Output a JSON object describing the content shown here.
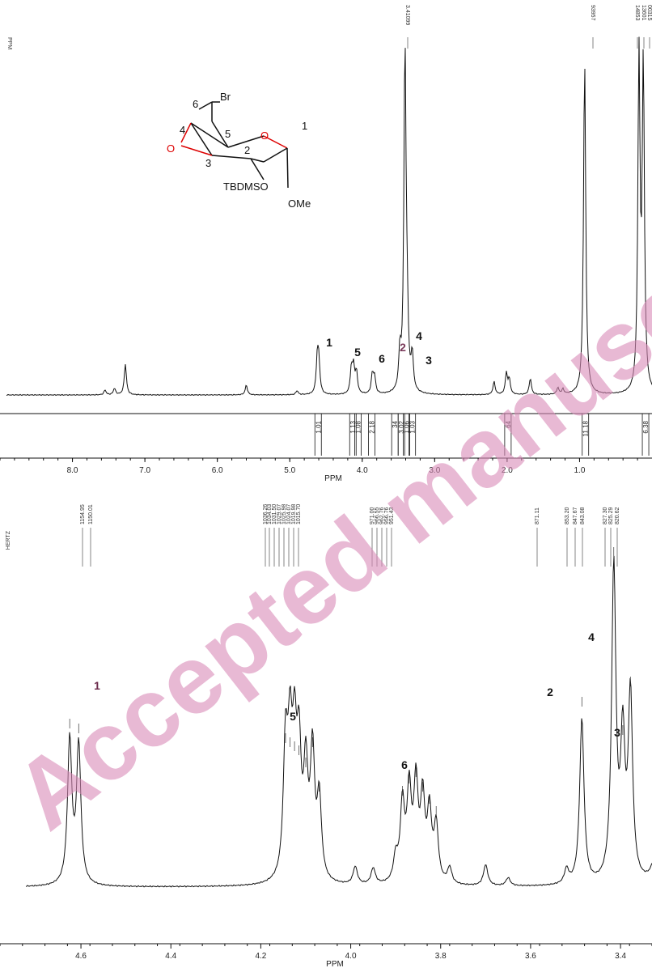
{
  "watermark": "Accepted manuscript",
  "chart_data": [
    {
      "type": "line",
      "xlabel": "PPM",
      "x_axis_label_left": "PPM",
      "xlim": [
        9.0,
        0.0
      ],
      "x_ticks": [
        "8.0",
        "7.0",
        "6.0",
        "5.0",
        "4.0",
        "3.0",
        "2.0",
        "1.0"
      ],
      "top_shift_labels": [
        "3.41099",
        "93957",
        "14853",
        "13601",
        "00315"
      ],
      "peak_labels": [
        {
          "label": "1",
          "ppm": 4.62
        },
        {
          "label": "5",
          "ppm": 4.12
        },
        {
          "label": "6",
          "ppm": 3.86
        },
        {
          "label": "2",
          "ppm": 3.48
        },
        {
          "label": "4",
          "ppm": 3.38
        },
        {
          "label": "3",
          "ppm": 3.31
        }
      ],
      "integrals": [
        {
          "value": "1.01",
          "ppm": 4.62
        },
        {
          "value": "1.13",
          "ppm": 4.14
        },
        {
          "value": "1.08",
          "ppm": 4.07
        },
        {
          "value": "2.18",
          "ppm": 3.88
        },
        {
          "value": "34",
          "ppm": 3.56
        },
        {
          "value": "3.02",
          "ppm": 3.47
        },
        {
          "value": "1.06",
          "ppm": 3.4
        },
        {
          "value": "1.03",
          "ppm": 3.32
        },
        {
          "value": "64",
          "ppm": 2.0
        },
        {
          "value": "11.18",
          "ppm": 0.93
        },
        {
          "value": "6.38",
          "ppm": 0.1
        }
      ],
      "peaks": [
        {
          "ppm": 7.55,
          "h": 6
        },
        {
          "ppm": 7.42,
          "h": 8
        },
        {
          "ppm": 7.27,
          "h": 38
        },
        {
          "ppm": 5.6,
          "h": 12
        },
        {
          "ppm": 4.9,
          "h": 5
        },
        {
          "ppm": 4.62,
          "h": 42
        },
        {
          "ppm": 4.6,
          "h": 38
        },
        {
          "ppm": 4.15,
          "h": 30
        },
        {
          "ppm": 4.12,
          "h": 32
        },
        {
          "ppm": 4.08,
          "h": 26
        },
        {
          "ppm": 3.86,
          "h": 24
        },
        {
          "ppm": 3.83,
          "h": 20
        },
        {
          "ppm": 3.48,
          "h": 45
        },
        {
          "ppm": 3.41,
          "h": 425
        },
        {
          "ppm": 3.38,
          "h": 70
        },
        {
          "ppm": 3.31,
          "h": 44
        },
        {
          "ppm": 2.18,
          "h": 16
        },
        {
          "ppm": 2.01,
          "h": 26
        },
        {
          "ppm": 1.97,
          "h": 18
        },
        {
          "ppm": 1.68,
          "h": 20
        },
        {
          "ppm": 1.3,
          "h": 8
        },
        {
          "ppm": 1.23,
          "h": 6
        },
        {
          "ppm": 0.93,
          "h": 415
        },
        {
          "ppm": 0.18,
          "h": 410
        },
        {
          "ppm": 0.12,
          "h": 400
        }
      ]
    },
    {
      "type": "line",
      "xlabel": "PPM",
      "hertz_label": "HERTZ",
      "xlim": [
        4.78,
        3.33
      ],
      "x_ticks": [
        "4.6",
        "4.4",
        "4.2",
        "4.0",
        "3.8",
        "3.6",
        "3.4"
      ],
      "hertz_values": [
        "1154.95",
        "1150.01",
        "1036.26",
        "1034.03",
        "1031.50",
        "1029.07",
        "1025.98",
        "1024.07",
        "1019.98",
        "1015.70",
        "971.00",
        "966.55",
        "962.76",
        "956.76",
        "951.43",
        "871.11",
        "853.20",
        "847.67",
        "843.08",
        "827.30",
        "825.29",
        "820.62"
      ],
      "peak_labels": [
        {
          "label": "1",
          "ppm": 4.615
        },
        {
          "label": "5",
          "ppm": 4.115
        },
        {
          "label": "6",
          "ppm": 3.84
        },
        {
          "label": "2",
          "ppm": 3.49
        },
        {
          "label": "4",
          "ppm": 3.37
        },
        {
          "label": "3",
          "ppm": 3.32
        }
      ],
      "peaks": [
        {
          "ppm": 4.625,
          "h": 178
        },
        {
          "ppm": 4.605,
          "h": 172
        },
        {
          "ppm": 4.145,
          "h": 160
        },
        {
          "ppm": 4.135,
          "h": 155
        },
        {
          "ppm": 4.125,
          "h": 150
        },
        {
          "ppm": 4.115,
          "h": 145
        },
        {
          "ppm": 4.1,
          "h": 130
        },
        {
          "ppm": 4.085,
          "h": 155
        },
        {
          "ppm": 4.07,
          "h": 100
        },
        {
          "ppm": 3.885,
          "h": 95
        },
        {
          "ppm": 3.87,
          "h": 110
        },
        {
          "ppm": 3.855,
          "h": 118
        },
        {
          "ppm": 3.84,
          "h": 100
        },
        {
          "ppm": 3.825,
          "h": 85
        },
        {
          "ppm": 3.81,
          "h": 70
        },
        {
          "ppm": 3.99,
          "h": 22
        },
        {
          "ppm": 3.95,
          "h": 20
        },
        {
          "ppm": 3.9,
          "h": 30
        },
        {
          "ppm": 3.78,
          "h": 20
        },
        {
          "ppm": 3.7,
          "h": 26
        },
        {
          "ppm": 3.65,
          "h": 10
        },
        {
          "ppm": 3.52,
          "h": 18
        },
        {
          "ppm": 3.486,
          "h": 205
        },
        {
          "ppm": 3.415,
          "h": 390
        },
        {
          "ppm": 3.395,
          "h": 170
        },
        {
          "ppm": 3.378,
          "h": 230
        },
        {
          "ppm": 3.315,
          "h": 120
        },
        {
          "ppm": 3.305,
          "h": 115
        },
        {
          "ppm": 3.292,
          "h": 80
        }
      ]
    }
  ],
  "structure": {
    "labels": [
      "6",
      "Br",
      "4",
      "5",
      "O",
      "2",
      "1",
      "O",
      "3",
      "TBDMSO",
      "OMe"
    ]
  }
}
